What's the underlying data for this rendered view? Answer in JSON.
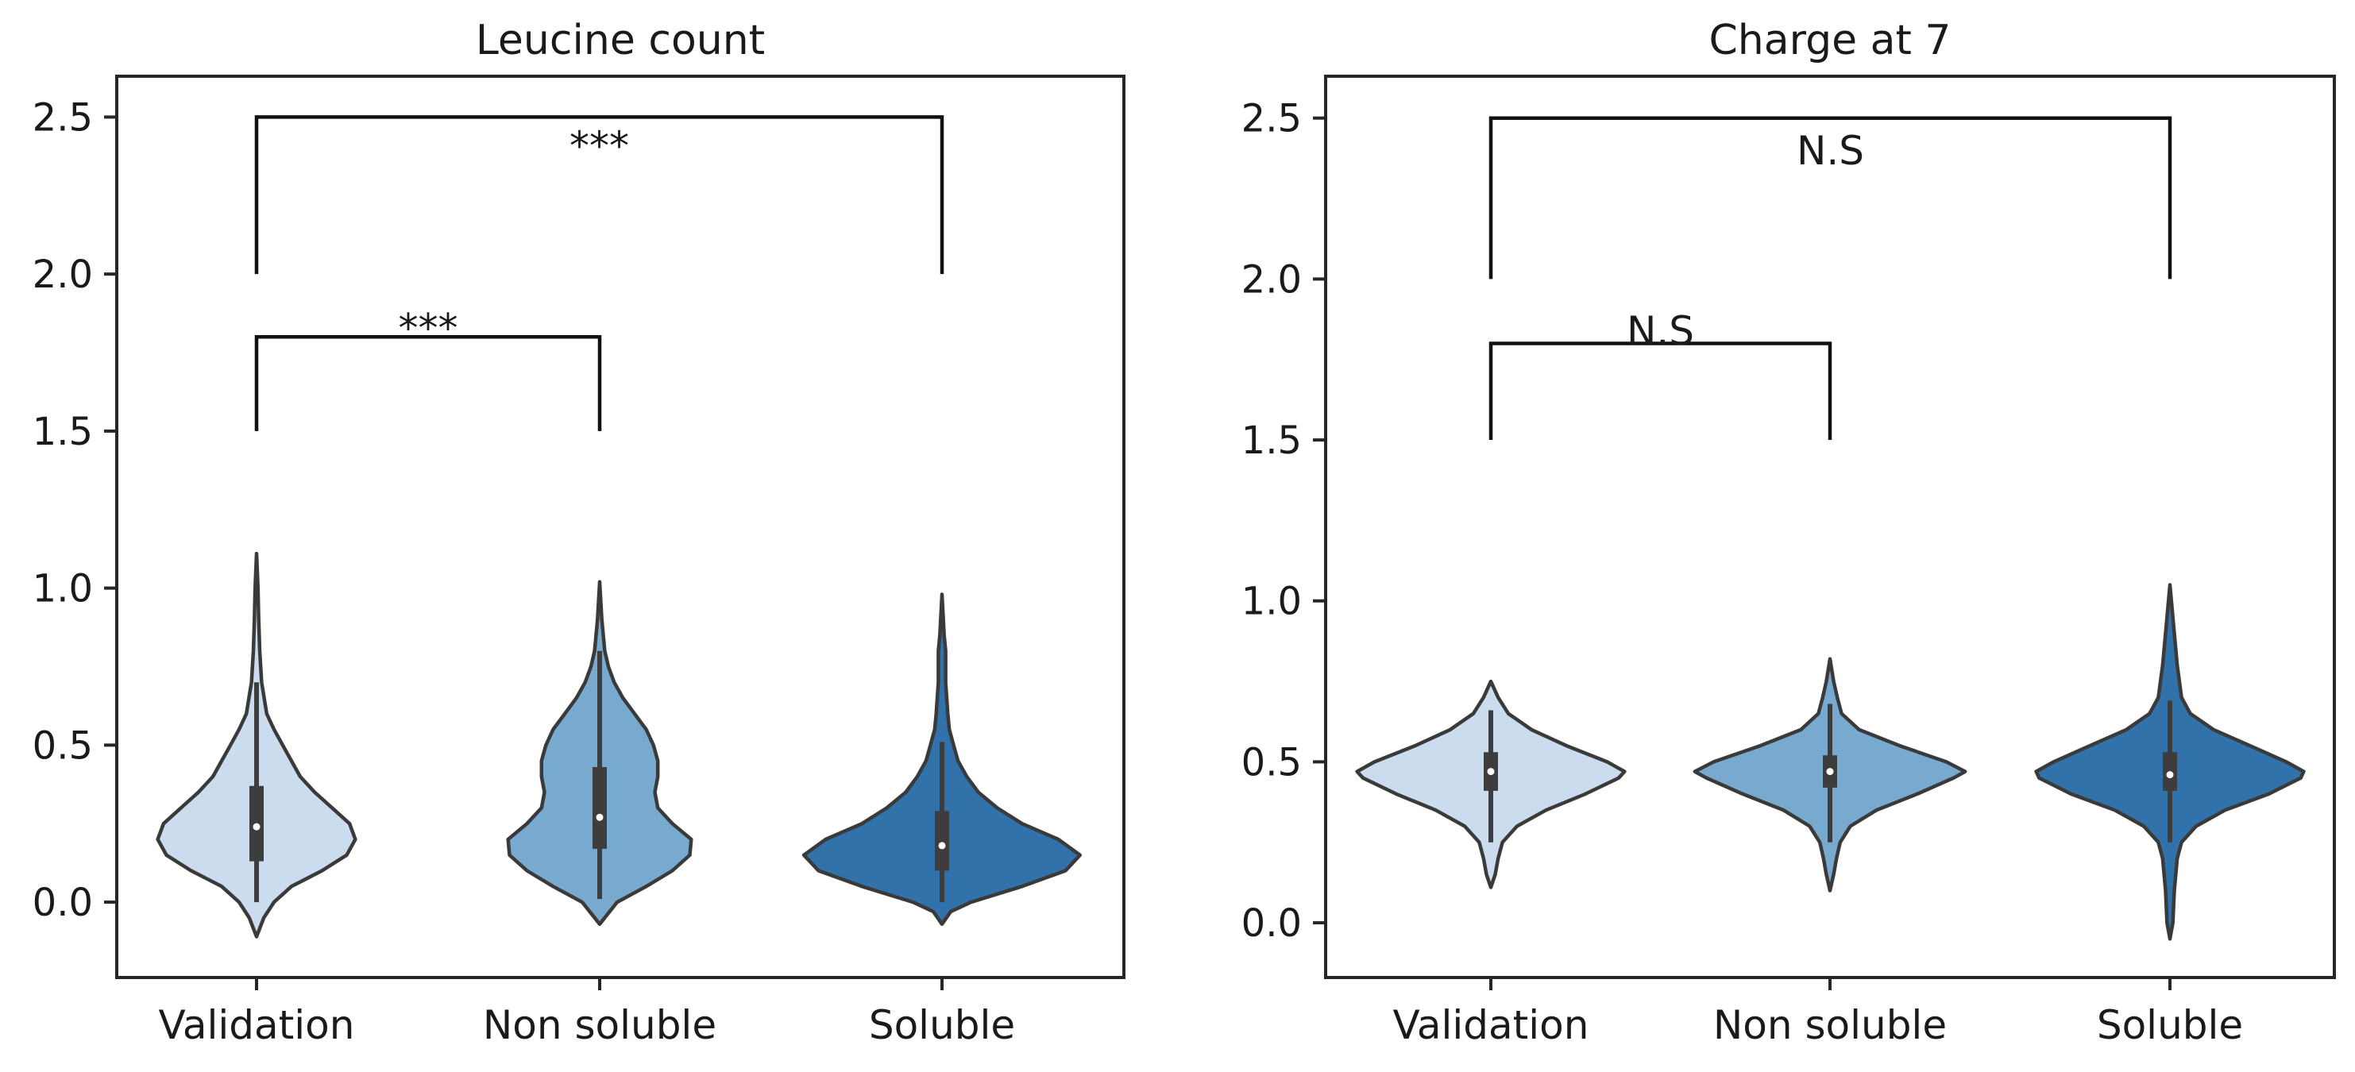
{
  "chart_data": [
    {
      "type": "violin",
      "title": "Leucine count",
      "xlabel": "",
      "ylabel": "",
      "ylim": [
        -0.24,
        2.63
      ],
      "yticks": [
        0.0,
        0.5,
        1.0,
        1.5,
        2.0,
        2.5
      ],
      "ytick_labels": [
        "0.0",
        "0.5",
        "1.0",
        "1.5",
        "2.0",
        "2.5"
      ],
      "categories": [
        "Validation",
        "Non soluble",
        "Soluble"
      ],
      "colors": [
        "#cbdcee",
        "#78aad0",
        "#3272aa"
      ],
      "violins": [
        {
          "category": "Validation",
          "median": 0.24,
          "q1": 0.13,
          "q3": 0.37,
          "whisker_low": 0.0,
          "whisker_high": 0.7,
          "profile": [
            [
              -0.11,
              0.0
            ],
            [
              -0.05,
              0.05
            ],
            [
              0.0,
              0.12
            ],
            [
              0.05,
              0.24
            ],
            [
              0.1,
              0.45
            ],
            [
              0.15,
              0.62
            ],
            [
              0.2,
              0.68
            ],
            [
              0.25,
              0.64
            ],
            [
              0.3,
              0.52
            ],
            [
              0.35,
              0.4
            ],
            [
              0.4,
              0.3
            ],
            [
              0.45,
              0.24
            ],
            [
              0.5,
              0.18
            ],
            [
              0.55,
              0.12
            ],
            [
              0.6,
              0.07
            ],
            [
              0.7,
              0.035
            ],
            [
              0.8,
              0.022
            ],
            [
              0.9,
              0.015
            ],
            [
              1.0,
              0.01
            ],
            [
              1.11,
              0.0
            ]
          ]
        },
        {
          "category": "Non soluble",
          "median": 0.27,
          "q1": 0.17,
          "q3": 0.43,
          "whisker_low": 0.01,
          "whisker_high": 0.8,
          "profile": [
            [
              -0.07,
              0.0
            ],
            [
              0.0,
              0.12
            ],
            [
              0.05,
              0.32
            ],
            [
              0.1,
              0.5
            ],
            [
              0.15,
              0.62
            ],
            [
              0.2,
              0.63
            ],
            [
              0.25,
              0.5
            ],
            [
              0.3,
              0.4
            ],
            [
              0.35,
              0.38
            ],
            [
              0.4,
              0.4
            ],
            [
              0.45,
              0.4
            ],
            [
              0.5,
              0.37
            ],
            [
              0.55,
              0.32
            ],
            [
              0.6,
              0.24
            ],
            [
              0.65,
              0.16
            ],
            [
              0.7,
              0.1
            ],
            [
              0.75,
              0.06
            ],
            [
              0.8,
              0.035
            ],
            [
              0.9,
              0.015
            ],
            [
              1.02,
              0.0
            ]
          ]
        },
        {
          "category": "Soluble",
          "median": 0.18,
          "q1": 0.1,
          "q3": 0.29,
          "whisker_low": 0.0,
          "whisker_high": 0.51,
          "profile": [
            [
              -0.07,
              0.0
            ],
            [
              -0.03,
              0.06
            ],
            [
              0.0,
              0.2
            ],
            [
              0.05,
              0.55
            ],
            [
              0.1,
              0.85
            ],
            [
              0.15,
              0.95
            ],
            [
              0.2,
              0.8
            ],
            [
              0.25,
              0.55
            ],
            [
              0.3,
              0.38
            ],
            [
              0.35,
              0.25
            ],
            [
              0.4,
              0.17
            ],
            [
              0.45,
              0.11
            ],
            [
              0.5,
              0.08
            ],
            [
              0.55,
              0.05
            ],
            [
              0.6,
              0.04
            ],
            [
              0.7,
              0.025
            ],
            [
              0.8,
              0.025
            ],
            [
              0.85,
              0.015
            ],
            [
              0.98,
              0.0
            ]
          ]
        }
      ],
      "brackets": [
        {
          "from": "Validation",
          "to": "Non soluble",
          "y": 1.8,
          "left_drop": 1.5,
          "right_drop": 1.5,
          "label": "***",
          "label_y": 1.83
        },
        {
          "from": "Validation",
          "to": "Soluble",
          "y": 2.5,
          "left_drop": 2.0,
          "right_drop": 2.0,
          "label": "***",
          "label_y": 2.41
        }
      ],
      "grid": false,
      "legend": "none"
    },
    {
      "type": "violin",
      "title": "Charge at 7",
      "xlabel": "",
      "ylabel": "",
      "ylim": [
        -0.17,
        2.63
      ],
      "yticks": [
        0.0,
        0.5,
        1.0,
        1.5,
        2.0,
        2.5
      ],
      "ytick_labels": [
        "0.0",
        "0.5",
        "1.0",
        "1.5",
        "2.0",
        "2.5"
      ],
      "categories": [
        "Validation",
        "Non soluble",
        "Soluble"
      ],
      "colors": [
        "#cbdcee",
        "#78aad0",
        "#3272aa"
      ],
      "violins": [
        {
          "category": "Validation",
          "median": 0.47,
          "q1": 0.41,
          "q3": 0.53,
          "whisker_low": 0.25,
          "whisker_high": 0.66,
          "profile": [
            [
              0.11,
              0.0
            ],
            [
              0.15,
              0.03
            ],
            [
              0.2,
              0.05
            ],
            [
              0.25,
              0.08
            ],
            [
              0.3,
              0.18
            ],
            [
              0.35,
              0.38
            ],
            [
              0.4,
              0.65
            ],
            [
              0.45,
              0.88
            ],
            [
              0.47,
              0.92
            ],
            [
              0.5,
              0.8
            ],
            [
              0.55,
              0.52
            ],
            [
              0.6,
              0.28
            ],
            [
              0.65,
              0.12
            ],
            [
              0.7,
              0.05
            ],
            [
              0.75,
              0.0
            ]
          ]
        },
        {
          "category": "Non soluble",
          "median": 0.47,
          "q1": 0.42,
          "q3": 0.52,
          "whisker_low": 0.25,
          "whisker_high": 0.68,
          "profile": [
            [
              0.1,
              0.0
            ],
            [
              0.15,
              0.025
            ],
            [
              0.2,
              0.045
            ],
            [
              0.25,
              0.07
            ],
            [
              0.3,
              0.14
            ],
            [
              0.35,
              0.32
            ],
            [
              0.4,
              0.6
            ],
            [
              0.45,
              0.85
            ],
            [
              0.47,
              0.93
            ],
            [
              0.5,
              0.8
            ],
            [
              0.55,
              0.48
            ],
            [
              0.6,
              0.2
            ],
            [
              0.65,
              0.08
            ],
            [
              0.7,
              0.05
            ],
            [
              0.75,
              0.025
            ],
            [
              0.82,
              0.0
            ]
          ]
        },
        {
          "category": "Soluble",
          "median": 0.46,
          "q1": 0.41,
          "q3": 0.53,
          "whisker_low": 0.25,
          "whisker_high": 0.69,
          "profile": [
            [
              -0.05,
              0.0
            ],
            [
              0.0,
              0.02
            ],
            [
              0.1,
              0.03
            ],
            [
              0.2,
              0.05
            ],
            [
              0.25,
              0.08
            ],
            [
              0.3,
              0.18
            ],
            [
              0.35,
              0.38
            ],
            [
              0.4,
              0.68
            ],
            [
              0.45,
              0.9
            ],
            [
              0.47,
              0.92
            ],
            [
              0.5,
              0.8
            ],
            [
              0.55,
              0.55
            ],
            [
              0.6,
              0.3
            ],
            [
              0.65,
              0.14
            ],
            [
              0.7,
              0.08
            ],
            [
              0.8,
              0.05
            ],
            [
              0.9,
              0.03
            ],
            [
              1.05,
              0.0
            ]
          ]
        }
      ],
      "brackets": [
        {
          "from": "Validation",
          "to": "Non soluble",
          "y": 1.8,
          "left_drop": 1.5,
          "right_drop": 1.5,
          "label": "N.S",
          "label_y": 1.84
        },
        {
          "from": "Validation",
          "to": "Soluble",
          "y": 2.5,
          "left_drop": 2.0,
          "right_drop": 2.0,
          "label": "N.S",
          "label_y": 2.4
        }
      ],
      "grid": false,
      "legend": "none"
    }
  ]
}
